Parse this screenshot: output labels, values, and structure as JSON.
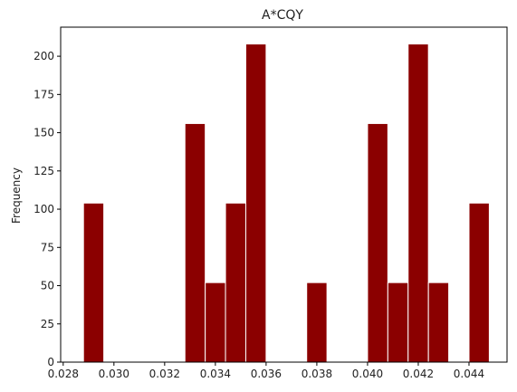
{
  "chart_data": {
    "type": "bar",
    "title": "A*CQY",
    "xlabel": "",
    "ylabel": "Frequency",
    "xlim": [
      0.0279,
      0.0455
    ],
    "ylim": [
      0,
      219
    ],
    "xticks": [
      "0.028",
      "0.030",
      "0.032",
      "0.034",
      "0.036",
      "0.038",
      "0.040",
      "0.042",
      "0.044"
    ],
    "xtick_values": [
      0.028,
      0.03,
      0.032,
      0.034,
      0.036,
      0.038,
      0.04,
      0.042,
      0.044
    ],
    "yticks": [
      "0",
      "25",
      "50",
      "75",
      "100",
      "125",
      "150",
      "175",
      "200"
    ],
    "ytick_values": [
      0,
      25,
      50,
      75,
      100,
      125,
      150,
      175,
      200
    ],
    "bin_width": 0.0008,
    "bins": [
      {
        "x0": 0.0288,
        "value": 104
      },
      {
        "x0": 0.0328,
        "value": 156
      },
      {
        "x0": 0.0336,
        "value": 52
      },
      {
        "x0": 0.0344,
        "value": 104
      },
      {
        "x0": 0.0352,
        "value": 208
      },
      {
        "x0": 0.0376,
        "value": 52
      },
      {
        "x0": 0.04,
        "value": 156
      },
      {
        "x0": 0.0408,
        "value": 52
      },
      {
        "x0": 0.0416,
        "value": 208
      },
      {
        "x0": 0.0424,
        "value": 52
      },
      {
        "x0": 0.044,
        "value": 104
      }
    ],
    "bar_color": "#8b0000",
    "edge_color": "#ffffff",
    "grid": false,
    "legend": "none"
  }
}
